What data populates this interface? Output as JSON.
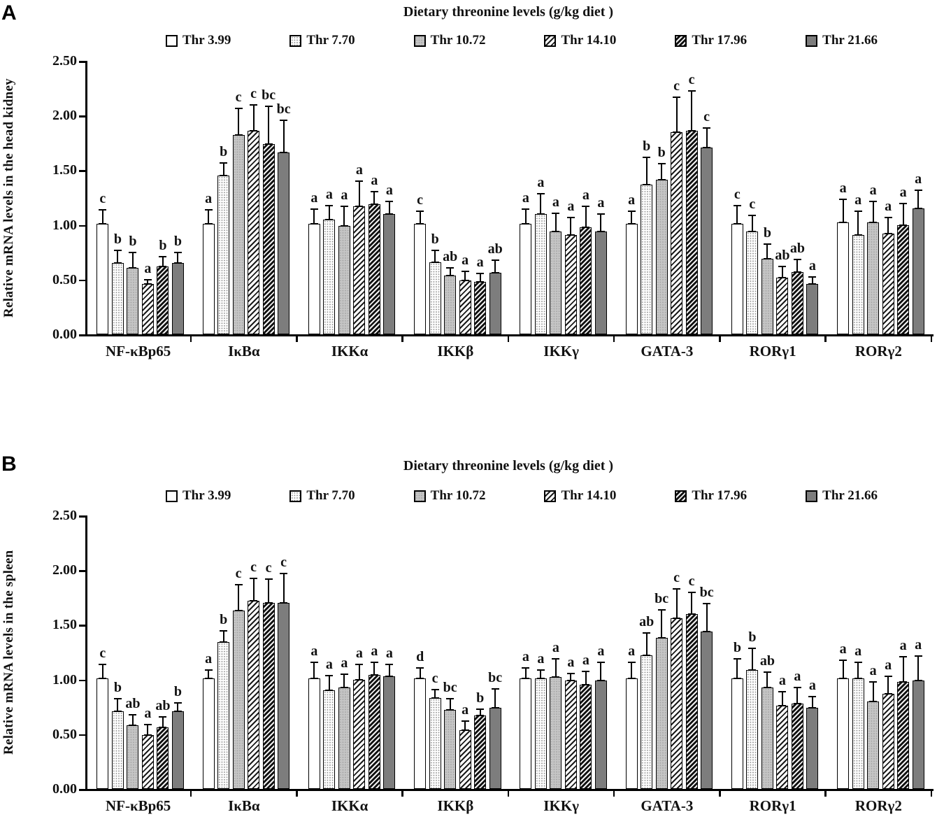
{
  "colors": {
    "axis": "#000000",
    "text": "#111111",
    "dark_gray_fill": "#7d7d7d",
    "mid_gray_fill": "#c5c5c5",
    "background": "#ffffff"
  },
  "legend": {
    "items": [
      {
        "label": "Thr 3.99",
        "pattern": "white"
      },
      {
        "label": "Thr 7.70",
        "pattern": "dots"
      },
      {
        "label": "Thr 10.72",
        "pattern": "gray"
      },
      {
        "label": "Thr 14.10",
        "pattern": "hatch-light"
      },
      {
        "label": "Thr 17.96",
        "pattern": "hatch-dark"
      },
      {
        "label": "Thr 21.66",
        "pattern": "dark-gray"
      }
    ]
  },
  "chart_data": [
    {
      "type": "bar",
      "panel_label": "A",
      "title": "Dietary threonine levels (g/kg diet )",
      "ylabel": "Relative mRNA levels in the head kidney",
      "ylim": [
        0,
        2.5
      ],
      "grid": false,
      "legend_position": "top",
      "yticks": [
        0,
        0.5,
        1.0,
        1.5,
        2.0,
        2.5
      ],
      "ytick_labels": [
        "0.00",
        "0.50",
        "1.00",
        "1.50",
        "2.00",
        "2.50"
      ],
      "series_labels": [
        "Thr 3.99",
        "Thr 7.70",
        "Thr 10.72",
        "Thr 14.10",
        "Thr 17.96",
        "Thr 21.66"
      ],
      "groups": [
        {
          "label": "NF-κBp65",
          "values": [
            1.01,
            0.65,
            0.61,
            0.46,
            0.62,
            0.65
          ],
          "errors": [
            0.14,
            0.13,
            0.15,
            0.05,
            0.1,
            0.11
          ],
          "letters": [
            "c",
            "b",
            "b",
            "a",
            "b",
            "b"
          ]
        },
        {
          "label": "IκBα",
          "values": [
            1.01,
            1.45,
            1.82,
            1.86,
            1.74,
            1.66
          ],
          "errors": [
            0.14,
            0.13,
            0.26,
            0.25,
            0.36,
            0.31
          ],
          "letters": [
            "a",
            "b",
            "c",
            "c",
            "bc",
            "bc"
          ]
        },
        {
          "label": "IKKα",
          "values": [
            1.01,
            1.05,
            0.99,
            1.17,
            1.19,
            1.1
          ],
          "errors": [
            0.15,
            0.14,
            0.19,
            0.24,
            0.13,
            0.13
          ],
          "letters": [
            "a",
            "a",
            "a",
            "a",
            "a",
            "a"
          ]
        },
        {
          "label": "IKKβ",
          "values": [
            1.01,
            0.66,
            0.54,
            0.49,
            0.48,
            0.56
          ],
          "errors": [
            0.13,
            0.12,
            0.08,
            0.1,
            0.09,
            0.13
          ],
          "letters": [
            "c",
            "b",
            "ab",
            "a",
            "a",
            "ab"
          ]
        },
        {
          "label": "IKKγ",
          "values": [
            1.01,
            1.1,
            0.94,
            0.91,
            0.98,
            0.94
          ],
          "errors": [
            0.15,
            0.2,
            0.18,
            0.17,
            0.2,
            0.17
          ],
          "letters": [
            "a",
            "a",
            "a",
            "a",
            "a",
            "a"
          ]
        },
        {
          "label": "GATA-3",
          "values": [
            1.01,
            1.37,
            1.41,
            1.85,
            1.86,
            1.71
          ],
          "errors": [
            0.13,
            0.26,
            0.16,
            0.33,
            0.38,
            0.19
          ],
          "letters": [
            "a",
            "b",
            "b",
            "c",
            "c",
            "c"
          ]
        },
        {
          "label": "RORγ1",
          "values": [
            1.01,
            0.94,
            0.69,
            0.52,
            0.57,
            0.46
          ],
          "errors": [
            0.18,
            0.16,
            0.15,
            0.11,
            0.13,
            0.08
          ],
          "letters": [
            "c",
            "c",
            "b",
            "ab",
            "ab",
            "a"
          ]
        },
        {
          "label": "RORγ2",
          "values": [
            1.02,
            0.91,
            1.02,
            0.92,
            1.0,
            1.15
          ],
          "errors": [
            0.23,
            0.23,
            0.21,
            0.16,
            0.21,
            0.18
          ],
          "letters": [
            "a",
            "a",
            "a",
            "a",
            "a",
            "a"
          ]
        }
      ]
    },
    {
      "type": "bar",
      "panel_label": "B",
      "title": "Dietary threonine levels (g/kg diet )",
      "ylabel": "Relative mRNA levels in the spleen",
      "ylim": [
        0,
        2.5
      ],
      "grid": false,
      "legend_position": "top",
      "yticks": [
        0,
        0.5,
        1.0,
        1.5,
        2.0,
        2.5
      ],
      "ytick_labels": [
        "0.00",
        "0.50",
        "1.00",
        "1.50",
        "2.00",
        "2.50"
      ],
      "series_labels": [
        "Thr 3.99",
        "Thr 7.70",
        "Thr 10.72",
        "Thr 14.10",
        "Thr 17.96",
        "Thr 21.66"
      ],
      "groups": [
        {
          "label": "NF-κBp65",
          "values": [
            1.01,
            0.71,
            0.58,
            0.49,
            0.56,
            0.71
          ],
          "errors": [
            0.14,
            0.13,
            0.11,
            0.11,
            0.11,
            0.09
          ],
          "letters": [
            "c",
            "b",
            "ab",
            "a",
            "ab",
            "b"
          ]
        },
        {
          "label": "IκBα",
          "values": [
            1.01,
            1.34,
            1.63,
            1.72,
            1.7,
            1.7
          ],
          "errors": [
            0.09,
            0.12,
            0.25,
            0.22,
            0.23,
            0.28
          ],
          "letters": [
            "a",
            "b",
            "c",
            "c",
            "c",
            "c"
          ]
        },
        {
          "label": "IKKα",
          "values": [
            1.01,
            0.9,
            0.93,
            1.0,
            1.04,
            1.03
          ],
          "errors": [
            0.16,
            0.15,
            0.13,
            0.15,
            0.13,
            0.12
          ],
          "letters": [
            "a",
            "a",
            "a",
            "a",
            "a",
            "a"
          ]
        },
        {
          "label": "IKKβ",
          "values": [
            1.01,
            0.83,
            0.72,
            0.54,
            0.67,
            0.74
          ],
          "errors": [
            0.11,
            0.09,
            0.12,
            0.09,
            0.07,
            0.19
          ],
          "letters": [
            "d",
            "c",
            "bc",
            "a",
            "b",
            "bc"
          ]
        },
        {
          "label": "IKKγ",
          "values": [
            1.01,
            1.01,
            1.02,
            0.99,
            0.95,
            0.99
          ],
          "errors": [
            0.11,
            0.09,
            0.18,
            0.08,
            0.14,
            0.18
          ],
          "letters": [
            "a",
            "a",
            "a",
            "a",
            "a",
            "a"
          ]
        },
        {
          "label": "GATA-3",
          "values": [
            1.01,
            1.22,
            1.38,
            1.56,
            1.6,
            1.44
          ],
          "errors": [
            0.16,
            0.22,
            0.27,
            0.28,
            0.21,
            0.27
          ],
          "letters": [
            "a",
            "ab",
            "bc",
            "c",
            "c",
            "bc"
          ]
        },
        {
          "label": "RORγ1",
          "values": [
            1.01,
            1.09,
            0.93,
            0.76,
            0.78,
            0.74
          ],
          "errors": [
            0.19,
            0.21,
            0.15,
            0.14,
            0.16,
            0.12
          ],
          "letters": [
            "b",
            "b",
            "ab",
            "a",
            "a",
            "a"
          ]
        },
        {
          "label": "RORγ2",
          "values": [
            1.01,
            1.01,
            0.8,
            0.87,
            0.98,
            0.99
          ],
          "errors": [
            0.18,
            0.16,
            0.19,
            0.17,
            0.24,
            0.24
          ],
          "letters": [
            "a",
            "a",
            "a",
            "a",
            "a",
            "a"
          ]
        }
      ]
    }
  ]
}
